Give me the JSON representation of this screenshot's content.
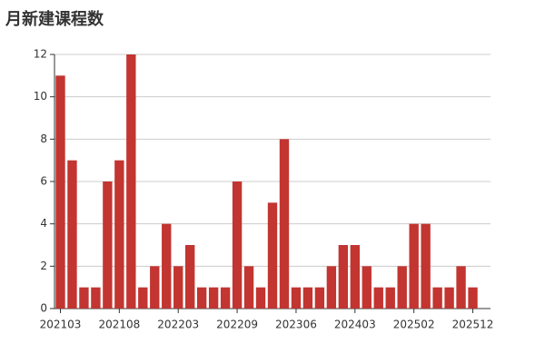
{
  "chart_data": {
    "type": "bar",
    "title": "月新建课程数",
    "categories": [
      "202103",
      null,
      null,
      null,
      null,
      "202108",
      null,
      null,
      null,
      null,
      "202203",
      null,
      null,
      null,
      null,
      "202209",
      null,
      null,
      null,
      null,
      "202306",
      null,
      null,
      null,
      null,
      "202403",
      null,
      null,
      null,
      null,
      "202502",
      null,
      null,
      null,
      null,
      "202512",
      null
    ],
    "values": [
      11,
      7,
      1,
      1,
      6,
      7,
      12,
      1,
      2,
      4,
      2,
      3,
      1,
      1,
      1,
      6,
      2,
      1,
      5,
      8,
      1,
      1,
      1,
      2,
      3,
      3,
      2,
      1,
      1,
      2,
      4,
      4,
      1,
      1,
      2,
      1,
      0
    ],
    "color": "#c23531",
    "ylim": [
      0,
      12
    ],
    "yticks": [
      0,
      2,
      4,
      6,
      8,
      10,
      12
    ],
    "grid": true
  }
}
